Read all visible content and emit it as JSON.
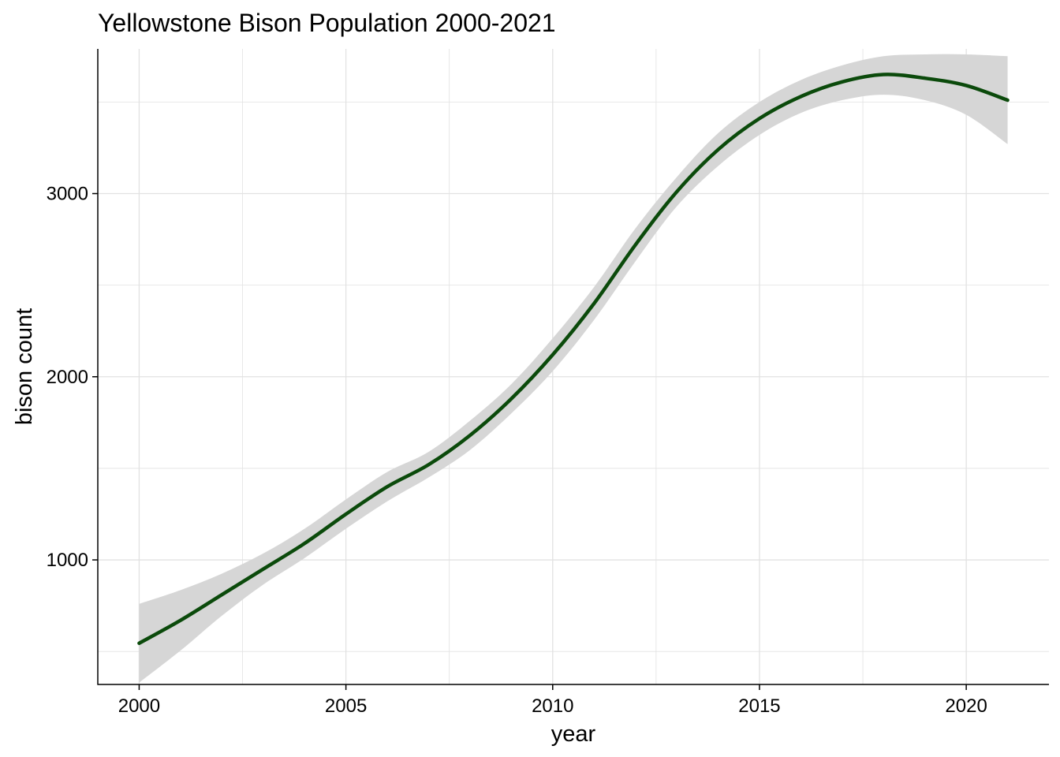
{
  "chart_data": {
    "type": "line",
    "title": "Yellowstone Bison Population 2000-2021",
    "xlabel": "year",
    "ylabel": "bison count",
    "xlim": [
      1999,
      2022
    ],
    "ylim": [
      320,
      3790
    ],
    "x_major_ticks": [
      2000,
      2005,
      2010,
      2015,
      2020
    ],
    "x_tick_labels": [
      "2000",
      "2005",
      "2010",
      "2015",
      "2020"
    ],
    "x_minor_ticks": [
      2002.5,
      2007.5,
      2012.5,
      2017.5
    ],
    "y_major_ticks": [
      1000,
      2000,
      3000
    ],
    "y_tick_labels": [
      "1000",
      "2000",
      "3000"
    ],
    "y_minor_ticks": [
      500,
      1500,
      2500,
      3500
    ],
    "grid": true,
    "legend": "none",
    "colors": {
      "line": "#0b4a0b",
      "band": "#d6d6d6",
      "grid": "#e2e2e2",
      "axis": "#000000"
    },
    "series": [
      {
        "x": [
          2000,
          2001,
          2002,
          2003,
          2004,
          2005,
          2006,
          2007,
          2008,
          2009,
          2010,
          2011,
          2012,
          2013,
          2014,
          2015,
          2016,
          2017,
          2018,
          2019,
          2020,
          2021
        ],
        "y": [
          545,
          670,
          810,
          950,
          1090,
          1250,
          1400,
          1520,
          1680,
          1880,
          2120,
          2400,
          2720,
          3010,
          3240,
          3410,
          3530,
          3610,
          3650,
          3630,
          3590,
          3510
        ],
        "lower": [
          330,
          505,
          695,
          865,
          1010,
          1170,
          1320,
          1450,
          1600,
          1800,
          2030,
          2310,
          2630,
          2930,
          3150,
          3320,
          3440,
          3510,
          3540,
          3510,
          3430,
          3270
        ],
        "upper": [
          760,
          835,
          925,
          1035,
          1170,
          1330,
          1480,
          1590,
          1760,
          1960,
          2210,
          2490,
          2810,
          3090,
          3330,
          3500,
          3620,
          3700,
          3750,
          3760,
          3760,
          3750
        ]
      }
    ]
  }
}
